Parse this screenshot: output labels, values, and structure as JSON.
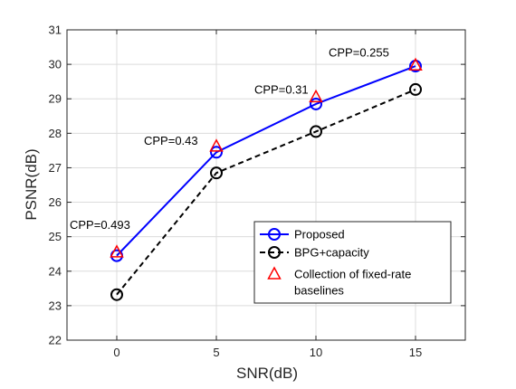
{
  "chart_data": {
    "type": "line",
    "x": [
      0,
      5,
      10,
      15
    ],
    "xlabel": "SNR(dB)",
    "ylabel": "PSNR(dB)",
    "xlim": [
      -2.5,
      17.5
    ],
    "ylim": [
      22,
      31
    ],
    "xticks": [
      0,
      5,
      10,
      15
    ],
    "yticks": [
      22,
      23,
      24,
      25,
      26,
      27,
      28,
      29,
      30,
      31
    ],
    "grid": true,
    "legend_position": "bottom-right",
    "series": [
      {
        "name": "Proposed",
        "values": [
          24.45,
          27.45,
          28.85,
          29.95
        ],
        "color": "#0000ff",
        "line_style": "solid",
        "marker": "circle"
      },
      {
        "name": "BPG+capacity",
        "values": [
          23.32,
          26.85,
          28.05,
          29.27
        ],
        "color": "#000000",
        "line_style": "dashed",
        "marker": "circle"
      },
      {
        "name": "Collection of fixed-rate baselines",
        "values": [
          24.55,
          27.62,
          29.05,
          29.97
        ],
        "color": "#ff0000",
        "line_style": "none",
        "marker": "triangle"
      }
    ],
    "annotations": [
      {
        "text": "CPP=0.493",
        "x": 0
      },
      {
        "text": "CPP=0.43",
        "x": 5
      },
      {
        "text": "CPP=0.31",
        "x": 10
      },
      {
        "text": "CPP=0.255",
        "x": 15
      }
    ]
  }
}
